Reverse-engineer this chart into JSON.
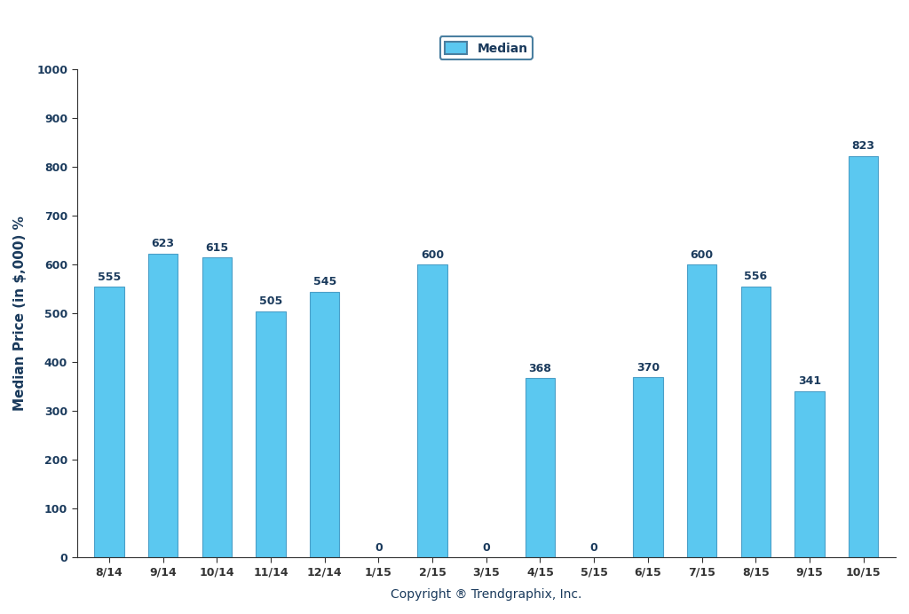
{
  "categories": [
    "8/14",
    "9/14",
    "10/14",
    "11/14",
    "12/14",
    "1/15",
    "2/15",
    "3/15",
    "4/15",
    "5/15",
    "6/15",
    "7/15",
    "8/15",
    "9/15",
    "10/15"
  ],
  "values": [
    555,
    623,
    615,
    505,
    545,
    0,
    600,
    0,
    368,
    0,
    370,
    600,
    556,
    341,
    823
  ],
  "bar_color": "#5BC8F0",
  "bar_edge_color": "#4A9FC8",
  "ylabel": "Median Price (in $,000) %",
  "xlabel": "Copyright ® Trendgraphix, Inc.",
  "ylim": [
    0,
    1000
  ],
  "yticks": [
    0,
    100,
    200,
    300,
    400,
    500,
    600,
    700,
    800,
    900,
    1000
  ],
  "legend_label": "Median",
  "legend_box_color": "#5BC8F0",
  "legend_box_edge": "#4A7FA0",
  "tick_label_color": "#1a3a5c",
  "bar_label_color": "#1a3a5c",
  "ylabel_color": "#1a3a5c",
  "xlabel_color": "#1a3a5c",
  "spine_color": "#333333",
  "background_color": "#ffffff",
  "legend_text_color": "#1a3a5c",
  "bar_label_fontsize": 9,
  "axis_tick_fontsize": 9,
  "ylabel_fontsize": 11,
  "xlabel_fontsize": 10
}
